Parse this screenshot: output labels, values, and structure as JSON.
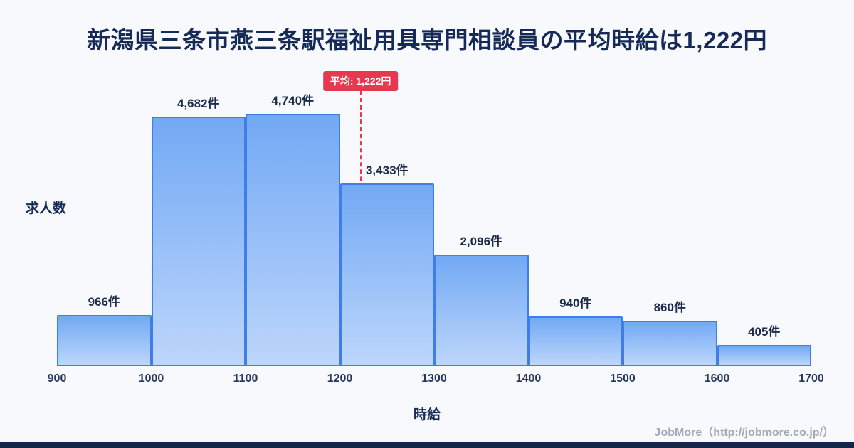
{
  "page": {
    "footer": "JobMore（http://jobmore.co.jp/）"
  },
  "colors": {
    "background": "#f7f9fd",
    "title_text": "#152a56",
    "label_text": "#1c2b4a",
    "tick_text": "#27365a",
    "bar_fill_top": "#72a9f4",
    "bar_fill_bottom": "#bdd6fb",
    "bar_border": "#3f7ee8",
    "average_line": "#e63950",
    "badge_bg": "#e63950",
    "badge_text": "#ffffff",
    "footer_text": "#a3a9b7",
    "bottom_bar": "#14264f"
  },
  "chart_data": {
    "type": "bar",
    "title": "新潟県三条市燕三条駅福祉用具専門相談員の平均時給は1,222円",
    "xlabel": "時給",
    "ylabel": "求人数",
    "xlim": [
      900,
      1700
    ],
    "bin_edges": [
      900,
      1000,
      1100,
      1200,
      1300,
      1400,
      1500,
      1600,
      1700
    ],
    "values": [
      966,
      4682,
      4740,
      3433,
      2096,
      940,
      860,
      405
    ],
    "value_labels": [
      "966件",
      "4,682件",
      "4,740件",
      "3,433件",
      "2,096件",
      "940件",
      "860件",
      "405件"
    ],
    "average": {
      "value": 1222,
      "label": "平均: 1,222円"
    },
    "grid": false,
    "legend": false
  }
}
